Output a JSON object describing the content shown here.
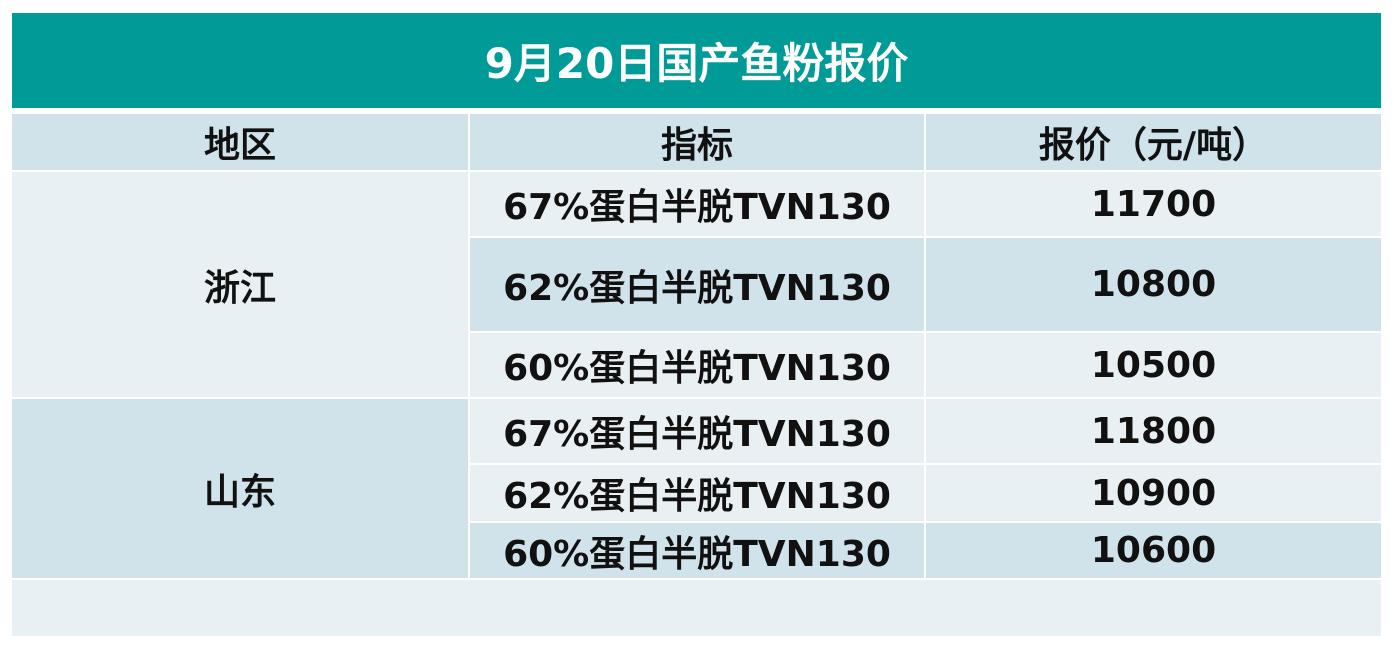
{
  "header": {
    "title": "9月20日国产鱼粉报价"
  },
  "table": {
    "columns": [
      "地区",
      "指标",
      "报价（元/吨）"
    ],
    "groups": [
      {
        "region": "浙江",
        "rows": [
          {
            "indicator": "67%蛋白半脱TVN130",
            "price": 11700
          },
          {
            "indicator": "62%蛋白半脱TVN130",
            "price": 10800
          },
          {
            "indicator": "60%蛋白半脱TVN130",
            "price": 10500
          }
        ]
      },
      {
        "region": "山东",
        "rows": [
          {
            "indicator": "67%蛋白半脱TVN130",
            "price": 11800
          },
          {
            "indicator": "62%蛋白半脱TVN130",
            "price": 10900
          },
          {
            "indicator": "60%蛋白半脱TVN130",
            "price": 10600
          }
        ]
      }
    ]
  }
}
